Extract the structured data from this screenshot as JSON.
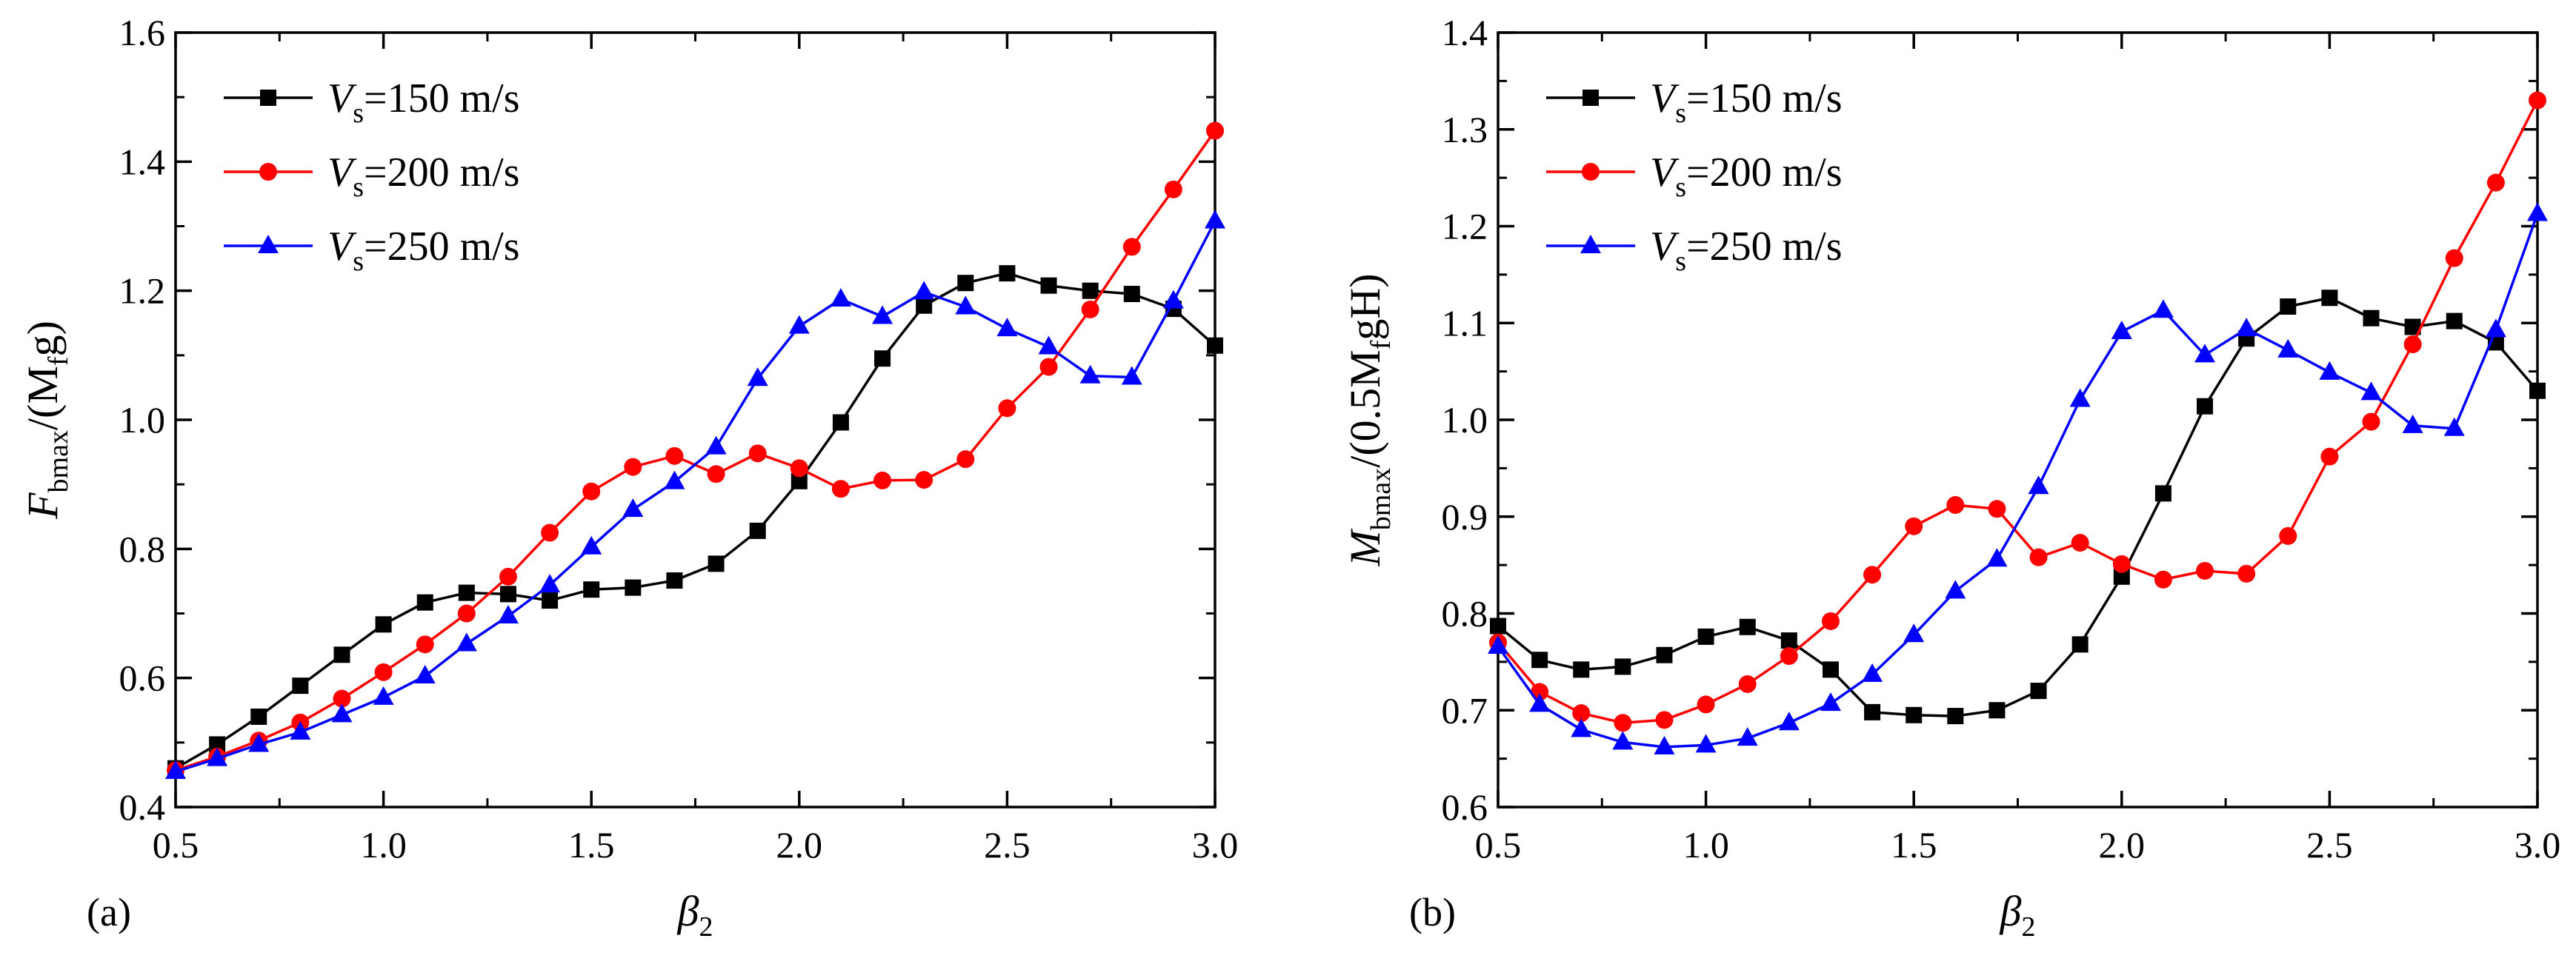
{
  "chart_data": [
    {
      "type": "line",
      "panel_label": "(a)",
      "xlabel": {
        "main": "β",
        "sub": "2"
      },
      "ylabel": {
        "pre": "F",
        "sub1": "bmax",
        "mid": "/(M",
        "sub2": "f",
        "post": "g)"
      },
      "xlim": [
        0.5,
        3.0
      ],
      "ylim": [
        0.4,
        1.6
      ],
      "xticks": [
        0.5,
        1.0,
        1.5,
        2.0,
        2.5,
        3.0
      ],
      "xtick_labels": [
        "0.5",
        "1.0",
        "1.5",
        "2.0",
        "2.5",
        "3.0"
      ],
      "yticks": [
        0.4,
        0.6,
        0.8,
        1.0,
        1.2,
        1.4,
        1.6
      ],
      "ytick_labels": [
        "0.4",
        "0.6",
        "0.8",
        "1.0",
        "1.2",
        "1.4",
        "1.6"
      ],
      "legend_position": "top-left",
      "x": [
        0.5,
        0.6,
        0.7,
        0.8,
        0.9,
        1.0,
        1.1,
        1.2,
        1.3,
        1.4,
        1.5,
        1.6,
        1.7,
        1.8,
        1.9,
        2.0,
        2.1,
        2.2,
        2.3,
        2.4,
        2.5,
        2.6,
        2.7,
        2.8,
        2.9,
        3.0
      ],
      "series": [
        {
          "name": "Vs=150 m/s",
          "label_main": "V",
          "label_sub": "s",
          "label_rest": "=150 m/s",
          "color": "#000000",
          "marker": "square",
          "values": [
            0.46,
            0.497,
            0.54,
            0.588,
            0.636,
            0.683,
            0.717,
            0.732,
            0.73,
            0.72,
            0.737,
            0.74,
            0.751,
            0.777,
            0.828,
            0.905,
            0.996,
            1.095,
            1.177,
            1.212,
            1.227,
            1.208,
            1.2,
            1.195,
            1.172,
            1.115
          ]
        },
        {
          "name": "Vs=200 m/s",
          "label_main": "V",
          "label_sub": "s",
          "label_rest": "=200 m/s",
          "color": "#ff0000",
          "marker": "circle",
          "values": [
            0.457,
            0.478,
            0.503,
            0.531,
            0.568,
            0.609,
            0.652,
            0.7,
            0.757,
            0.825,
            0.889,
            0.927,
            0.944,
            0.916,
            0.948,
            0.925,
            0.893,
            0.906,
            0.907,
            0.939,
            1.018,
            1.082,
            1.171,
            1.268,
            1.357,
            1.448
          ]
        },
        {
          "name": "Vs=250 m/s",
          "label_main": "V",
          "label_sub": "s",
          "label_rest": "=250 m/s",
          "color": "#0000ff",
          "marker": "triangle",
          "values": [
            0.455,
            0.475,
            0.497,
            0.516,
            0.543,
            0.57,
            0.603,
            0.653,
            0.696,
            0.744,
            0.803,
            0.861,
            0.904,
            0.958,
            1.064,
            1.145,
            1.187,
            1.16,
            1.198,
            1.175,
            1.141,
            1.113,
            1.068,
            1.066,
            1.184,
            1.308
          ]
        }
      ]
    },
    {
      "type": "line",
      "panel_label": "(b)",
      "xlabel": {
        "main": "β",
        "sub": "2"
      },
      "ylabel": {
        "pre": "M",
        "sub1": "bmax",
        "mid": "/(0.5M",
        "sub2": "f",
        "post": "gH)"
      },
      "xlim": [
        0.5,
        3.0
      ],
      "ylim": [
        0.6,
        1.4
      ],
      "xticks": [
        0.5,
        1.0,
        1.5,
        2.0,
        2.5,
        3.0
      ],
      "xtick_labels": [
        "0.5",
        "1.0",
        "1.5",
        "2.0",
        "2.5",
        "3.0"
      ],
      "yticks": [
        0.6,
        0.7,
        0.8,
        0.9,
        1.0,
        1.1,
        1.2,
        1.3,
        1.4
      ],
      "ytick_labels": [
        "0.6",
        "0.7",
        "0.8",
        "0.9",
        "1.0",
        "1.1",
        "1.2",
        "1.3",
        "1.4"
      ],
      "legend_position": "top-left",
      "x": [
        0.5,
        0.6,
        0.7,
        0.8,
        0.9,
        1.0,
        1.1,
        1.2,
        1.3,
        1.4,
        1.5,
        1.6,
        1.7,
        1.8,
        1.9,
        2.0,
        2.1,
        2.2,
        2.3,
        2.4,
        2.5,
        2.6,
        2.7,
        2.8,
        2.9,
        3.0
      ],
      "series": [
        {
          "name": "Vs=150 m/s",
          "label_main": "V",
          "label_sub": "s",
          "label_rest": "=150 m/s",
          "color": "#000000",
          "marker": "square",
          "values": [
            0.787,
            0.752,
            0.742,
            0.745,
            0.757,
            0.776,
            0.786,
            0.772,
            0.742,
            0.698,
            0.695,
            0.694,
            0.7,
            0.72,
            0.768,
            0.838,
            0.924,
            1.014,
            1.084,
            1.117,
            1.126,
            1.105,
            1.096,
            1.102,
            1.08,
            1.03
          ]
        },
        {
          "name": "Vs=200 m/s",
          "label_main": "V",
          "label_sub": "s",
          "label_rest": "=200 m/s",
          "color": "#ff0000",
          "marker": "circle",
          "values": [
            0.77,
            0.719,
            0.697,
            0.687,
            0.69,
            0.706,
            0.727,
            0.756,
            0.792,
            0.84,
            0.89,
            0.912,
            0.908,
            0.858,
            0.873,
            0.851,
            0.835,
            0.844,
            0.841,
            0.88,
            0.962,
            0.998,
            1.078,
            1.167,
            1.245,
            1.33
          ]
        },
        {
          "name": "Vs=250 m/s",
          "label_main": "V",
          "label_sub": "s",
          "label_rest": "=250 m/s",
          "color": "#0000ff",
          "marker": "triangle",
          "values": [
            0.766,
            0.706,
            0.68,
            0.667,
            0.662,
            0.664,
            0.671,
            0.687,
            0.707,
            0.737,
            0.778,
            0.823,
            0.856,
            0.931,
            1.021,
            1.091,
            1.113,
            1.067,
            1.094,
            1.072,
            1.049,
            1.028,
            0.994,
            0.991,
            1.093,
            1.213
          ]
        }
      ]
    }
  ]
}
